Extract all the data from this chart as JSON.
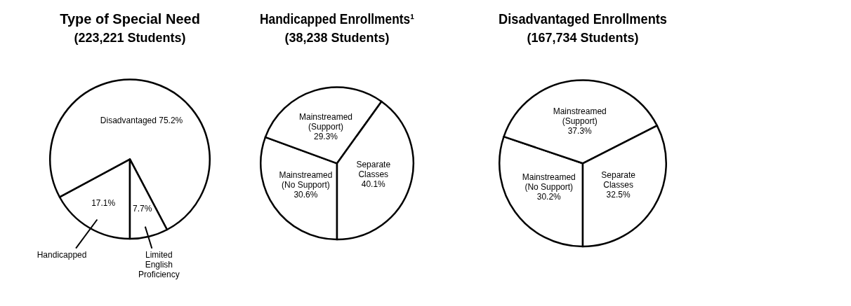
{
  "chart_data": [
    {
      "type": "pie",
      "title": "Type of Special Need",
      "subtitle": "(223,221 Students)",
      "categories": [
        "Handicapped",
        "Disadvantaged",
        "Limited English Proficiency"
      ],
      "values": [
        17.1,
        75.2,
        7.7
      ],
      "value_labels": [
        "17.1%",
        "75.2%",
        "7.7%"
      ],
      "colors": [
        "#ffffff",
        "#ffffff",
        "#ffffff"
      ],
      "legend": false
    },
    {
      "type": "pie",
      "title": "Handicapped Enrollments¹",
      "subtitle": "(38,238 Students)",
      "categories": [
        "Mainstreamed (No Support)",
        "Mainstreamed (Support)",
        "Separate Classes"
      ],
      "values": [
        30.6,
        29.3,
        40.1
      ],
      "value_labels": [
        "30.6%",
        "29.3%",
        "40.1%"
      ],
      "colors": [
        "#ffffff",
        "#ffffff",
        "#ffffff"
      ],
      "legend": false
    },
    {
      "type": "pie",
      "title": "Disadvantaged Enrollments",
      "subtitle": "(167,734 Students)",
      "categories": [
        "Mainstreamed (No Support)",
        "Mainstreamed (Support)",
        "Separate Classes"
      ],
      "values": [
        30.2,
        37.3,
        32.5
      ],
      "value_labels": [
        "30.2%",
        "37.3%",
        "32.5%"
      ],
      "colors": [
        "#ffffff",
        "#ffffff",
        "#ffffff"
      ],
      "legend": false
    }
  ]
}
